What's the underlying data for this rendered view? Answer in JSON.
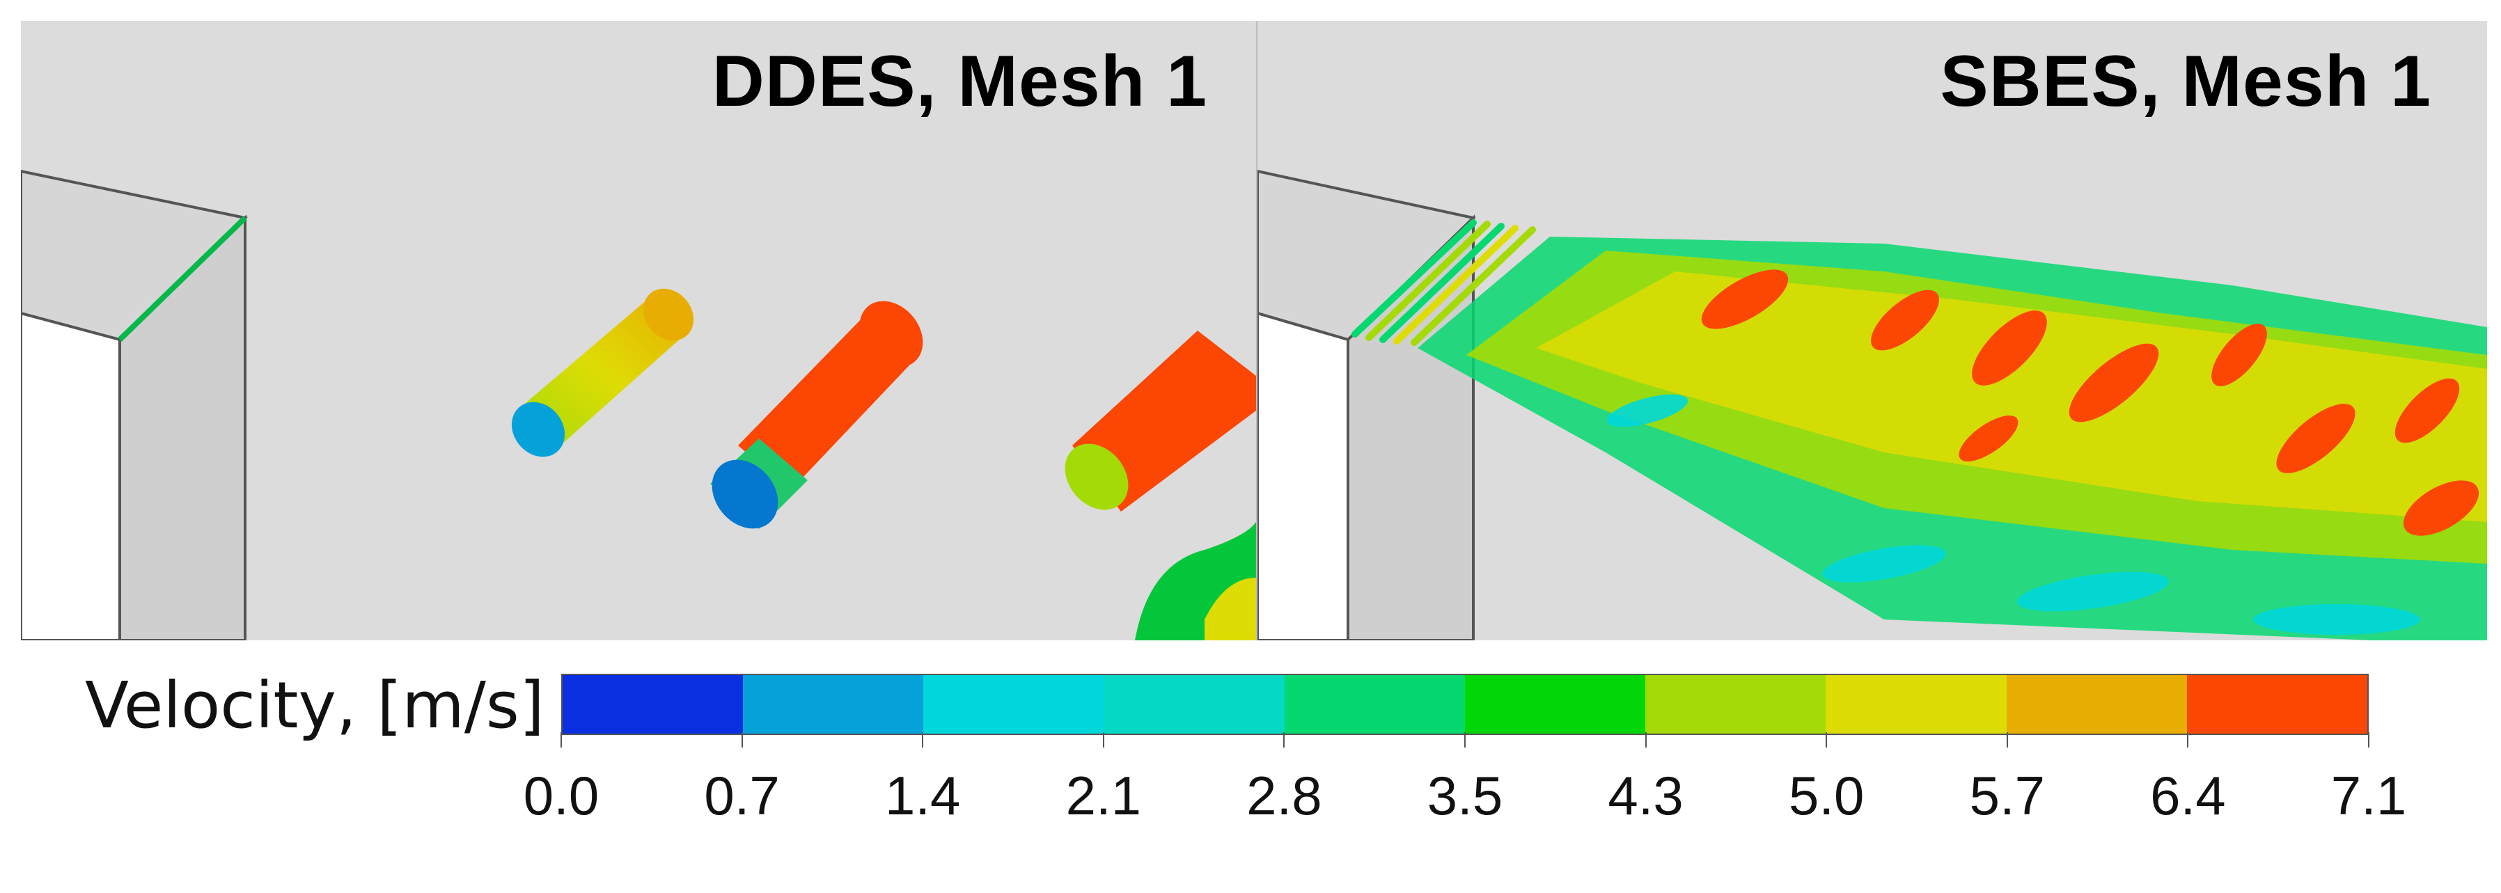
{
  "panels": [
    {
      "title": "DDES, Mesh 1"
    },
    {
      "title": "SBES, Mesh 1"
    }
  ],
  "legend": {
    "title": "Velocity, [m/s]",
    "ticks": [
      "0.0",
      "0.7",
      "1.4",
      "2.1",
      "2.8",
      "3.5",
      "4.3",
      "5.0",
      "5.7",
      "6.4",
      "7.1"
    ],
    "colors": [
      "#0a2fe0",
      "#05a2da",
      "#00d7db",
      "#06d8c6",
      "#06d870",
      "#03d607",
      "#a4da06",
      "#dedc05",
      "#e8ad02",
      "#fb4604"
    ]
  }
}
